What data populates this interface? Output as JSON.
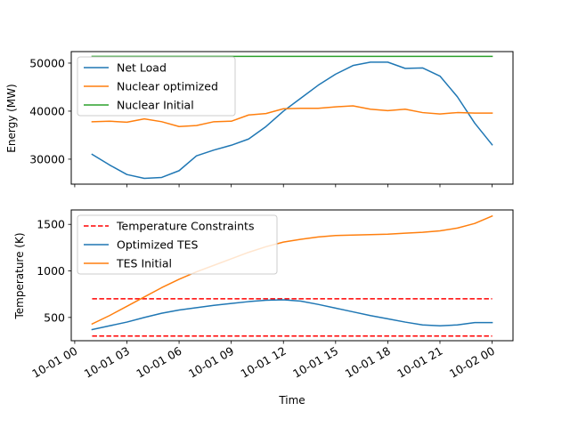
{
  "chart_data": [
    {
      "type": "line",
      "ylabel": "Energy (MW)",
      "xlabel": "",
      "ylim": [
        24800,
        52400
      ],
      "yticks": [
        30000,
        40000,
        50000
      ],
      "ytick_labels": [
        "30000",
        "40000",
        "50000"
      ],
      "x": [
        1,
        2,
        3,
        4,
        5,
        6,
        7,
        8,
        9,
        10,
        11,
        12,
        13,
        14,
        15,
        16,
        17,
        18,
        19,
        20,
        21,
        22,
        23,
        24
      ],
      "series": [
        {
          "name": "Net Load",
          "color": "#1f77b4",
          "values": [
            31000,
            28800,
            26800,
            26000,
            26200,
            27600,
            30700,
            31900,
            32900,
            34200,
            36800,
            40000,
            42700,
            45400,
            47700,
            49500,
            50200,
            50200,
            48900,
            49000,
            47300,
            43000,
            37500,
            33000
          ]
        },
        {
          "name": "Nuclear optimized",
          "color": "#ff7f0e",
          "values": [
            37800,
            37900,
            37700,
            38400,
            37800,
            36800,
            37000,
            37800,
            37900,
            39200,
            39500,
            40500,
            40600,
            40600,
            40900,
            41100,
            40400,
            40100,
            40400,
            39700,
            39400,
            39700,
            39600,
            39600
          ]
        },
        {
          "name": "Nuclear Initial",
          "color": "#2ca02c",
          "values": [
            51400,
            51400,
            51400,
            51400,
            51400,
            51400,
            51400,
            51400,
            51400,
            51400,
            51400,
            51400,
            51400,
            51400,
            51400,
            51400,
            51400,
            51400,
            51400,
            51400,
            51400,
            51400,
            51400,
            51400
          ]
        }
      ],
      "legend": "upper-left",
      "grid": false
    },
    {
      "type": "line",
      "ylabel": "Temperature (K)",
      "xlabel": "Time",
      "ylim": [
        250,
        1655
      ],
      "yticks": [
        500,
        1000,
        1500
      ],
      "ytick_labels": [
        "500",
        "1000",
        "1500"
      ],
      "x": [
        1,
        2,
        3,
        4,
        5,
        6,
        7,
        8,
        9,
        10,
        11,
        12,
        13,
        14,
        15,
        16,
        17,
        18,
        19,
        20,
        21,
        22,
        23,
        24
      ],
      "series": [
        {
          "name": "Temperature Constraints",
          "color": "#ff0000",
          "style": "dashed",
          "x": [
            1,
            24
          ],
          "values": [
            700,
            700
          ]
        },
        {
          "name": "",
          "color": "#ff0000",
          "style": "dashed",
          "x": [
            1,
            24
          ],
          "values": [
            300,
            300
          ]
        },
        {
          "name": "Optimized TES",
          "color": "#1f77b4",
          "values": [
            370,
            410,
            450,
            500,
            545,
            580,
            605,
            630,
            650,
            670,
            685,
            690,
            675,
            640,
            600,
            560,
            520,
            485,
            450,
            420,
            410,
            420,
            445,
            445
          ]
        },
        {
          "name": "TES Initial",
          "color": "#ff7f0e",
          "values": [
            430,
            520,
            620,
            720,
            820,
            910,
            990,
            1060,
            1130,
            1200,
            1260,
            1310,
            1340,
            1365,
            1380,
            1385,
            1390,
            1395,
            1405,
            1415,
            1430,
            1460,
            1510,
            1590
          ]
        }
      ],
      "legend": "upper-left",
      "grid": false
    }
  ],
  "xaxis": {
    "min": -0.2,
    "max": 25.2,
    "ticks": [
      0,
      3,
      6,
      9,
      12,
      15,
      18,
      21,
      24
    ],
    "tick_labels": [
      "10-01 00",
      "10-01 03",
      "10-01 06",
      "10-01 09",
      "10-01 12",
      "10-01 15",
      "10-01 18",
      "10-01 21",
      "10-02 00"
    ]
  }
}
